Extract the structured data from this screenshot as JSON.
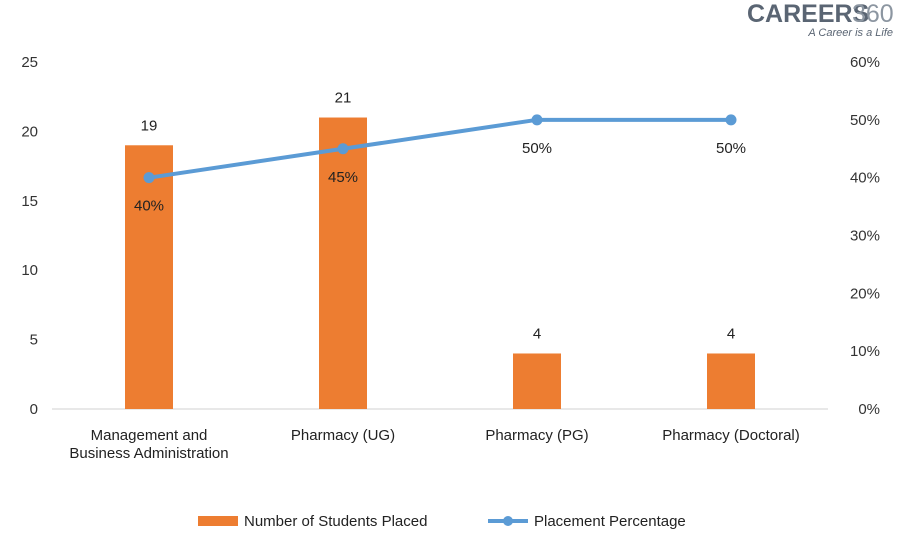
{
  "brand": {
    "name": "CAREERS",
    "number": "360",
    "tagline": "A Career is a Life"
  },
  "chart_data": {
    "type": "bar",
    "categories": [
      [
        "Management and",
        "Business Administration"
      ],
      [
        "Pharmacy (UG)"
      ],
      [
        "Pharmacy (PG)"
      ],
      [
        "Pharmacy (Doctoral)"
      ]
    ],
    "series": [
      {
        "name": "Number of Students Placed",
        "type": "bar",
        "axis": "left",
        "color": "#ED7D31",
        "values": [
          19,
          21,
          4,
          4
        ],
        "labels": [
          "19",
          "21",
          "4",
          "4"
        ]
      },
      {
        "name": "Placement Percentage",
        "type": "line",
        "axis": "right",
        "color": "#5B9BD5",
        "values": [
          0.4,
          0.45,
          0.5,
          0.5
        ],
        "labels": [
          "40%",
          "45%",
          "50%",
          "50%"
        ]
      }
    ],
    "y_left": {
      "min": 0,
      "max": 25,
      "step": 5,
      "tick_labels": [
        "0",
        "5",
        "10",
        "15",
        "20",
        "25"
      ]
    },
    "y_right": {
      "min": 0,
      "max": 0.6,
      "step": 0.1,
      "tick_labels": [
        "0%",
        "10%",
        "20%",
        "30%",
        "40%",
        "50%",
        "60%"
      ]
    },
    "legend_position": "bottom",
    "grid": false
  }
}
